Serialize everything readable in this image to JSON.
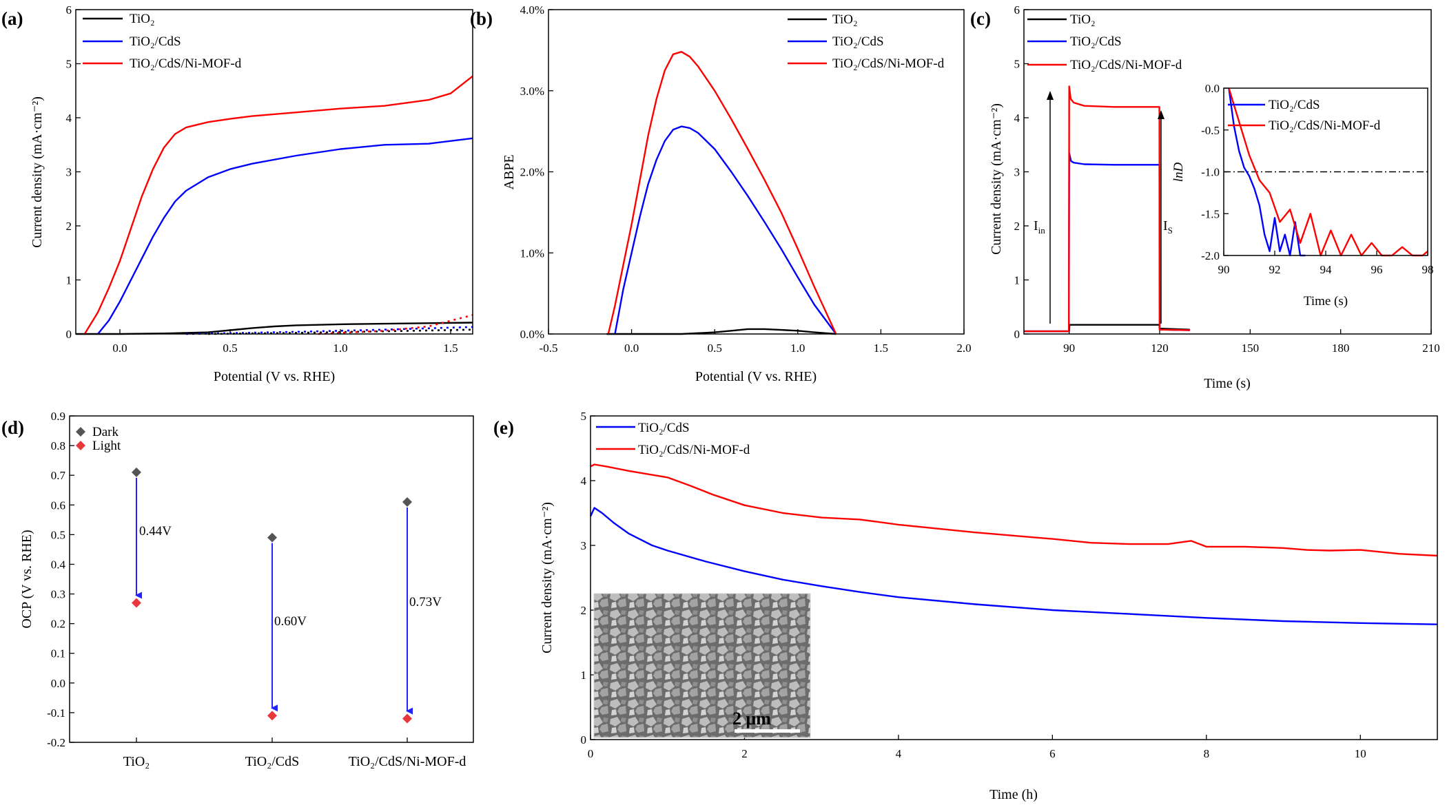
{
  "panels": {
    "a": {
      "label": "(a)",
      "xlabel": "Potential (V vs. RHE)",
      "ylabel": "Current density (mA·cm⁻²)",
      "legend": [
        {
          "name": "TiO₂",
          "color": "#000000"
        },
        {
          "name": "TiO₂/CdS",
          "color": "#0000ff"
        },
        {
          "name": "TiO₂/CdS/Ni-MOF-d",
          "color": "#ff0000"
        }
      ]
    },
    "b": {
      "label": "(b)",
      "xlabel": "Potential (V vs. RHE)",
      "ylabel": "ABPE",
      "legend": [
        {
          "name": "TiO₂",
          "color": "#000000"
        },
        {
          "name": "TiO₂/CdS",
          "color": "#0000ff"
        },
        {
          "name": "TiO₂/CdS/Ni-MOF-d",
          "color": "#ff0000"
        }
      ]
    },
    "c": {
      "label": "(c)",
      "xlabel": "Time (s)",
      "ylabel": "Current density (mA·cm⁻²)",
      "legend": [
        {
          "name": "TiO₂",
          "color": "#000000"
        },
        {
          "name": "TiO₂/CdS",
          "color": "#0000ff"
        },
        {
          "name": "TiO₂/CdS/Ni-MOF-d",
          "color": "#ff0000"
        }
      ],
      "annot_in": "I",
      "annot_in_sub": "in",
      "annot_s": "I",
      "annot_s_sub": "S",
      "inset": {
        "xlabel": "Time (s)",
        "ylabel": "lnD",
        "legend": [
          {
            "name": "TiO₂/CdS",
            "color": "#0000ff"
          },
          {
            "name": "TiO₂/CdS/Ni-MOF-d",
            "color": "#ff0000"
          }
        ]
      }
    },
    "d": {
      "label": "(d)",
      "ylabel": "OCP (V vs. RHE)",
      "legend": [
        {
          "name": "Dark",
          "color": "#555555"
        },
        {
          "name": "Light",
          "color": "#e8383d"
        }
      ],
      "deltas": [
        "0.44V",
        "0.60V",
        "0.73V"
      ]
    },
    "e": {
      "label": "(e)",
      "xlabel": "Time (h)",
      "ylabel": "Current density (mA·cm⁻²)",
      "legend": [
        {
          "name": "TiO₂/CdS",
          "color": "#0000ff"
        },
        {
          "name": "TiO₂/CdS/Ni-MOF-d",
          "color": "#ff0000"
        }
      ],
      "scalebar": "2 μm"
    }
  },
  "chart_data": [
    {
      "id": "a",
      "type": "line",
      "xlim": [
        -0.2,
        1.6
      ],
      "ylim": [
        0,
        6
      ],
      "xticks": [
        0.0,
        0.5,
        1.0,
        1.5
      ],
      "yticks": [
        0,
        1,
        2,
        3,
        4,
        5,
        6
      ],
      "series": [
        {
          "name": "TiO₂",
          "color": "#000000",
          "x": [
            -0.2,
            0.0,
            0.2,
            0.4,
            0.5,
            0.6,
            0.7,
            0.8,
            1.0,
            1.2,
            1.4,
            1.6
          ],
          "y": [
            0.0,
            0.0,
            0.01,
            0.03,
            0.07,
            0.11,
            0.14,
            0.16,
            0.18,
            0.19,
            0.2,
            0.21
          ]
        },
        {
          "name": "TiO₂/CdS",
          "color": "#0000ff",
          "x": [
            -0.1,
            -0.05,
            0.0,
            0.05,
            0.1,
            0.15,
            0.2,
            0.25,
            0.3,
            0.4,
            0.5,
            0.6,
            0.8,
            1.0,
            1.2,
            1.4,
            1.6
          ],
          "y": [
            0.0,
            0.25,
            0.6,
            1.0,
            1.4,
            1.8,
            2.15,
            2.45,
            2.65,
            2.9,
            3.05,
            3.15,
            3.3,
            3.42,
            3.5,
            3.52,
            3.62
          ]
        },
        {
          "name": "TiO₂/CdS/Ni-MOF-d",
          "color": "#ff0000",
          "x": [
            -0.16,
            -0.1,
            -0.05,
            0.0,
            0.05,
            0.1,
            0.15,
            0.2,
            0.25,
            0.3,
            0.4,
            0.5,
            0.6,
            0.8,
            1.0,
            1.2,
            1.4,
            1.5,
            1.6
          ],
          "y": [
            0.0,
            0.4,
            0.85,
            1.35,
            1.95,
            2.55,
            3.05,
            3.45,
            3.7,
            3.82,
            3.92,
            3.98,
            4.03,
            4.1,
            4.17,
            4.22,
            4.33,
            4.45,
            4.77
          ]
        },
        {
          "name": "TiO₂ dark",
          "color": "#000000",
          "dash": true,
          "x": [
            0.4,
            0.8,
            1.2,
            1.6
          ],
          "y": [
            0.0,
            0.02,
            0.05,
            0.08
          ]
        },
        {
          "name": "TiO₂/CdS dark",
          "color": "#0000ff",
          "dash": true,
          "x": [
            0.3,
            0.8,
            1.2,
            1.6
          ],
          "y": [
            0.0,
            0.04,
            0.08,
            0.13
          ]
        },
        {
          "name": "TiO₂/CdS/Ni-MOF-d dark",
          "color": "#ff0000",
          "dash": true,
          "x": [
            0.9,
            1.2,
            1.4,
            1.6
          ],
          "y": [
            0.0,
            0.06,
            0.14,
            0.35
          ]
        }
      ]
    },
    {
      "id": "b",
      "type": "line",
      "xlim": [
        -0.5,
        2.0
      ],
      "ylim": [
        0,
        4.0
      ],
      "xticks": [
        -0.5,
        0.0,
        0.5,
        1.0,
        1.5,
        2.0
      ],
      "yticks": [
        0.0,
        1.0,
        2.0,
        3.0,
        4.0
      ],
      "yticklabels": [
        "0.0%",
        "1.0%",
        "2.0%",
        "3.0%",
        "4.0%"
      ],
      "series": [
        {
          "name": "TiO₂",
          "color": "#000000",
          "x": [
            -0.15,
            0.3,
            0.5,
            0.6,
            0.7,
            0.8,
            0.9,
            1.0,
            1.1,
            1.23
          ],
          "y": [
            0.0,
            0.0,
            0.02,
            0.04,
            0.06,
            0.06,
            0.05,
            0.04,
            0.02,
            0.0
          ]
        },
        {
          "name": "TiO₂/CdS",
          "color": "#0000ff",
          "x": [
            -0.1,
            -0.05,
            0.0,
            0.05,
            0.1,
            0.15,
            0.2,
            0.25,
            0.3,
            0.35,
            0.4,
            0.5,
            0.6,
            0.7,
            0.8,
            0.9,
            1.0,
            1.1,
            1.23
          ],
          "y": [
            0.0,
            0.55,
            1.0,
            1.45,
            1.85,
            2.15,
            2.38,
            2.52,
            2.56,
            2.54,
            2.48,
            2.28,
            2.0,
            1.7,
            1.38,
            1.05,
            0.7,
            0.36,
            0.0
          ]
        },
        {
          "name": "TiO₂/CdS/Ni-MOF-d",
          "color": "#ff0000",
          "x": [
            -0.14,
            -0.1,
            -0.05,
            0.0,
            0.05,
            0.1,
            0.15,
            0.2,
            0.25,
            0.3,
            0.35,
            0.4,
            0.5,
            0.6,
            0.7,
            0.8,
            0.9,
            1.0,
            1.1,
            1.23
          ],
          "y": [
            0.0,
            0.35,
            0.85,
            1.35,
            1.9,
            2.45,
            2.9,
            3.25,
            3.45,
            3.48,
            3.42,
            3.3,
            3.0,
            2.65,
            2.28,
            1.9,
            1.5,
            1.05,
            0.58,
            0.0
          ]
        }
      ]
    },
    {
      "id": "c",
      "type": "line",
      "xlim": [
        75,
        210
      ],
      "ylim": [
        0,
        6
      ],
      "xticks": [
        90,
        120,
        150,
        180,
        210
      ],
      "yticks": [
        0,
        1,
        2,
        3,
        4,
        5,
        6
      ],
      "series": [
        {
          "name": "TiO₂",
          "color": "#000000",
          "x": [
            75,
            90,
            90.1,
            119.9,
            120,
            130
          ],
          "y": [
            0.05,
            0.05,
            0.17,
            0.17,
            0.1,
            0.08
          ]
        },
        {
          "name": "TiO₂/CdS",
          "color": "#0000ff",
          "x": [
            75,
            89.9,
            90,
            90.6,
            91.5,
            95,
            105,
            115,
            119.9,
            120,
            130
          ],
          "y": [
            0.05,
            0.05,
            3.35,
            3.2,
            3.17,
            3.14,
            3.13,
            3.13,
            3.13,
            0.08,
            0.07
          ]
        },
        {
          "name": "TiO₂/CdS/Ni-MOF-d",
          "color": "#ff0000",
          "x": [
            75,
            89.9,
            90,
            90.5,
            91.5,
            95,
            105,
            115,
            119.9,
            120,
            130
          ],
          "y": [
            0.05,
            0.05,
            4.58,
            4.35,
            4.28,
            4.22,
            4.2,
            4.2,
            4.2,
            0.08,
            0.07
          ]
        }
      ],
      "inset": {
        "type": "line",
        "xlim": [
          90,
          98
        ],
        "ylim": [
          -2.0,
          0.0
        ],
        "xticks": [
          90,
          92,
          94,
          96,
          98
        ],
        "yticks": [
          -2.0,
          -1.5,
          -1.0,
          -0.5,
          0.0
        ],
        "reference_line": -1.0,
        "series": [
          {
            "name": "TiO₂/CdS",
            "color": "#0000ff",
            "x": [
              90.2,
              90.4,
              90.6,
              90.8,
              91.0,
              91.2,
              91.4,
              91.6,
              91.8,
              92.0,
              92.2,
              92.4,
              92.6,
              92.8,
              93.0,
              93.2
            ],
            "y": [
              0.0,
              -0.45,
              -0.75,
              -0.95,
              -1.05,
              -1.2,
              -1.4,
              -1.75,
              -1.95,
              -1.55,
              -1.95,
              -1.75,
              -2.0,
              -1.6,
              -2.0,
              -2.0
            ]
          },
          {
            "name": "TiO₂/CdS/Ni-MOF-d",
            "color": "#ff0000",
            "x": [
              90.2,
              90.6,
              91.0,
              91.4,
              91.8,
              92.2,
              92.6,
              93.0,
              93.4,
              93.8,
              94.2,
              94.6,
              95.0,
              95.4,
              95.8,
              96.2,
              96.6,
              97.0,
              97.4,
              97.8,
              98.0
            ],
            "y": [
              0.0,
              -0.4,
              -0.8,
              -1.1,
              -1.25,
              -1.6,
              -1.45,
              -1.85,
              -1.5,
              -2.0,
              -1.7,
              -2.0,
              -1.75,
              -2.0,
              -1.85,
              -2.0,
              -2.0,
              -1.9,
              -2.0,
              -2.0,
              -1.95
            ]
          }
        ]
      }
    },
    {
      "id": "d",
      "type": "scatter",
      "categories": [
        "TiO₂",
        "TiO₂/CdS",
        "TiO₂/CdS/Ni-MOF-d"
      ],
      "ylim": [
        -0.2,
        0.9
      ],
      "yticks": [
        -0.2,
        -0.1,
        0.0,
        0.1,
        0.2,
        0.3,
        0.4,
        0.5,
        0.6,
        0.7,
        0.8,
        0.9
      ],
      "series": [
        {
          "name": "Dark",
          "color": "#555555",
          "values": [
            0.71,
            0.49,
            0.61
          ]
        },
        {
          "name": "Light",
          "color": "#e8383d",
          "values": [
            0.27,
            -0.11,
            -0.12
          ]
        }
      ]
    },
    {
      "id": "e",
      "type": "line",
      "xlim": [
        0,
        11
      ],
      "ylim": [
        0,
        5
      ],
      "xticks": [
        0,
        2,
        4,
        6,
        8,
        10
      ],
      "yticks": [
        0,
        1,
        2,
        3,
        4,
        5
      ],
      "series": [
        {
          "name": "TiO₂/CdS",
          "color": "#0000ff",
          "x": [
            0.0,
            0.05,
            0.15,
            0.3,
            0.5,
            0.8,
            1.0,
            1.5,
            2.0,
            2.5,
            3.0,
            3.5,
            4.0,
            5.0,
            6.0,
            7.0,
            8.0,
            9.0,
            10.0,
            11.0
          ],
          "y": [
            3.45,
            3.58,
            3.5,
            3.35,
            3.18,
            3.0,
            2.92,
            2.75,
            2.6,
            2.47,
            2.37,
            2.28,
            2.2,
            2.09,
            2.0,
            1.94,
            1.88,
            1.83,
            1.8,
            1.78
          ]
        },
        {
          "name": "TiO₂/CdS/Ni-MOF-d",
          "color": "#ff0000",
          "x": [
            0.0,
            0.05,
            0.2,
            0.5,
            1.0,
            1.3,
            1.6,
            2.0,
            2.5,
            3.0,
            3.5,
            4.0,
            5.0,
            6.0,
            6.5,
            7.0,
            7.5,
            7.8,
            8.0,
            8.5,
            9.0,
            9.3,
            9.6,
            10.0,
            10.5,
            11.0
          ],
          "y": [
            4.22,
            4.25,
            4.22,
            4.15,
            4.05,
            3.92,
            3.78,
            3.62,
            3.5,
            3.43,
            3.4,
            3.32,
            3.2,
            3.1,
            3.04,
            3.02,
            3.02,
            3.07,
            2.98,
            2.98,
            2.96,
            2.93,
            2.92,
            2.93,
            2.87,
            2.84
          ]
        }
      ]
    }
  ]
}
